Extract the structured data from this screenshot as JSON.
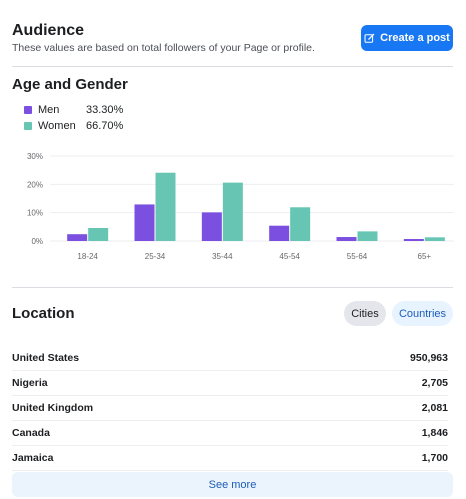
{
  "audience": {
    "title": "Audience",
    "subtitle": "These values are based on total followers of your Page or profile.",
    "create_post_label": "Create a post"
  },
  "age_gender": {
    "title": "Age and Gender",
    "legend": [
      {
        "label": "Men",
        "value": "33.30%",
        "color": "#7b4fe0"
      },
      {
        "label": "Women",
        "value": "66.70%",
        "color": "#67c5b3"
      }
    ]
  },
  "chart_data": {
    "type": "bar",
    "categories": [
      "18-24",
      "25-34",
      "35-44",
      "45-54",
      "55-64",
      "65+"
    ],
    "series": [
      {
        "name": "Men",
        "color": "#7b4fe0",
        "values": [
          2.4,
          12.9,
          10.1,
          5.4,
          1.4,
          0.7
        ]
      },
      {
        "name": "Women",
        "color": "#67c5b3",
        "values": [
          4.6,
          24.1,
          20.6,
          11.9,
          3.4,
          1.3
        ]
      }
    ],
    "y_ticks": [
      "0%",
      "10%",
      "20%",
      "30%"
    ],
    "ylim": [
      0,
      30
    ],
    "grid": true
  },
  "location": {
    "title": "Location",
    "tabs": {
      "cities": "Cities",
      "countries": "Countries"
    },
    "rows": [
      {
        "name": "United States",
        "value": "950,963"
      },
      {
        "name": "Nigeria",
        "value": "2,705"
      },
      {
        "name": "United Kingdom",
        "value": "2,081"
      },
      {
        "name": "Canada",
        "value": "1,846"
      },
      {
        "name": "Jamaica",
        "value": "1,700"
      }
    ],
    "see_more_label": "See more"
  }
}
